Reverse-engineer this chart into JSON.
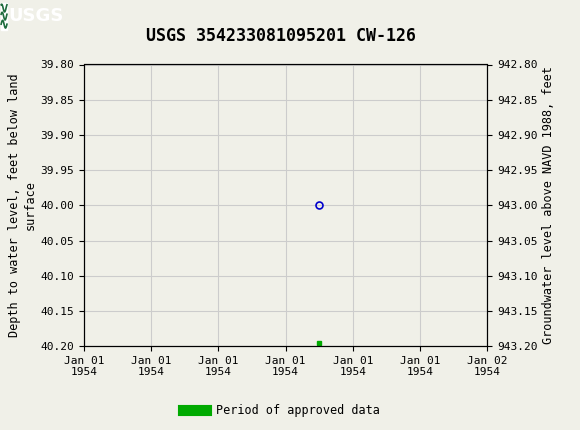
{
  "title": "USGS 354233081095201 CW-126",
  "left_ylabel": "Depth to water level, feet below land\nsurface",
  "right_ylabel": "Groundwater level above NAVD 1988, feet",
  "ylim_left": [
    39.8,
    40.2
  ],
  "ylim_right": [
    943.2,
    942.8
  ],
  "left_yticks": [
    39.8,
    39.85,
    39.9,
    39.95,
    40.0,
    40.05,
    40.1,
    40.15,
    40.2
  ],
  "right_yticks": [
    943.2,
    943.15,
    943.1,
    943.05,
    943.0,
    942.95,
    942.9,
    942.85,
    942.8
  ],
  "data_point_depth": 40.0,
  "green_square_depth": 40.195,
  "background_color": "#f0f0e8",
  "header_color": "#1e6b3c",
  "grid_color": "#cccccc",
  "circle_color": "#0000cc",
  "green_color": "#00aa00",
  "legend_label": "Period of approved data",
  "font_family": "monospace",
  "title_fontsize": 12,
  "tick_fontsize": 8,
  "label_fontsize": 8.5,
  "xmin_num": 0,
  "xmax_num": 6,
  "data_point_x": 3.5,
  "green_square_x": 3.5,
  "xtick_positions": [
    0,
    1,
    2,
    3,
    4,
    5,
    6
  ],
  "xtick_labels": [
    "Jan 01\n1954",
    "Jan 01\n1954",
    "Jan 01\n1954",
    "Jan 01\n1954",
    "Jan 01\n1954",
    "Jan 01\n1954",
    "Jan 02\n1954"
  ]
}
